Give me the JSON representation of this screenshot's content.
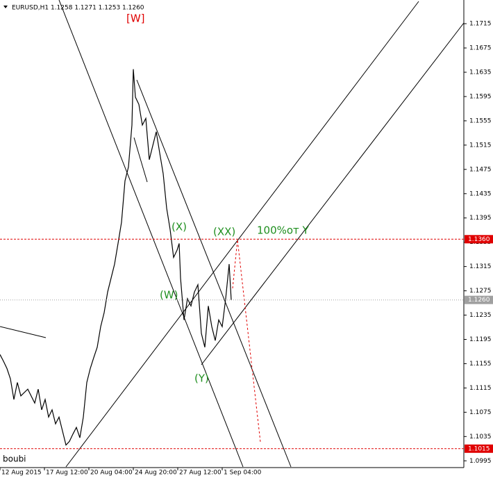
{
  "chart_data": {
    "type": "line",
    "title": "EURUSD,H1  1.1258 1.1271 1.1253 1.1260",
    "color": "#000000",
    "x": [
      0,
      5,
      10,
      15,
      20,
      25,
      30,
      40,
      50,
      55,
      60,
      65,
      70,
      75,
      80,
      85,
      90,
      95,
      100,
      105,
      110,
      115,
      120,
      125,
      130,
      135,
      140,
      145,
      150,
      155,
      160,
      165,
      170,
      175,
      180,
      185,
      190,
      192,
      195,
      200,
      205,
      210,
      215,
      220,
      225,
      230,
      235,
      240,
      245,
      250,
      255,
      258,
      260,
      265,
      270,
      275,
      280,
      285,
      290,
      295,
      300,
      305,
      310,
      315,
      320,
      325,
      330,
      333
    ],
    "values": [
      1.117,
      1.1159,
      1.1147,
      1.113,
      1.1096,
      1.1124,
      1.1102,
      1.1113,
      1.109,
      1.1113,
      1.1079,
      1.1096,
      1.1067,
      1.1079,
      1.1056,
      1.1067,
      1.1044,
      1.1021,
      1.1027,
      1.1039,
      1.105,
      1.1033,
      1.1067,
      1.1124,
      1.1147,
      1.1165,
      1.1182,
      1.1216,
      1.1239,
      1.1273,
      1.1296,
      1.1319,
      1.1353,
      1.1388,
      1.1456,
      1.1479,
      1.1548,
      1.164,
      1.1594,
      1.1582,
      1.1548,
      1.1559,
      1.1491,
      1.1514,
      1.1537,
      1.1502,
      1.1468,
      1.1411,
      1.1376,
      1.133,
      1.1342,
      1.1353,
      1.1296,
      1.1227,
      1.1262,
      1.125,
      1.1273,
      1.1285,
      1.1205,
      1.1182,
      1.125,
      1.1216,
      1.1193,
      1.1227,
      1.1216,
      1.1262,
      1.1319,
      1.126
    ],
    "xlim": [
      0,
      668
    ],
    "xticks": [
      {
        "value": 0,
        "label": "12 Aug 2015"
      },
      {
        "value": 64,
        "label": "17 Aug 12:00"
      },
      {
        "value": 128,
        "label": "20 Aug 04:00"
      },
      {
        "value": 192,
        "label": "24 Aug 20:00"
      },
      {
        "value": 256,
        "label": "27 Aug 12:00"
      },
      {
        "value": 320,
        "label": "1 Sep 04:00"
      }
    ],
    "ylim": [
      1.0985,
      1.1754
    ],
    "yticks": [
      1.1715,
      1.1675,
      1.1635,
      1.1595,
      1.1555,
      1.1515,
      1.1475,
      1.1435,
      1.1395,
      1.1355,
      1.1315,
      1.1275,
      1.1235,
      1.1195,
      1.1155,
      1.1115,
      1.1075,
      1.1035,
      1.0995
    ],
    "levels": [
      {
        "value": 1.136,
        "label": "1.1360",
        "color": "#e00000"
      },
      {
        "value": 1.126,
        "label": "1.1260",
        "color": "#a0a0a0"
      },
      {
        "value": 1.1015,
        "color": "#e00000"
      }
    ],
    "annotations": [
      {
        "text": "[W]",
        "color": "#e00000"
      },
      {
        "text": "(X)",
        "color": "#1f8f1f"
      },
      {
        "text": "(XX)",
        "color": "#1f8f1f"
      },
      {
        "text": "100%от Y",
        "color": "#1f8f1f"
      },
      {
        "text": "(W)",
        "color": "#1f8f1f"
      },
      {
        "text": "(Y)",
        "color": "#1f8f1f"
      },
      {
        "text": "boubi",
        "color": "#000000"
      }
    ]
  }
}
